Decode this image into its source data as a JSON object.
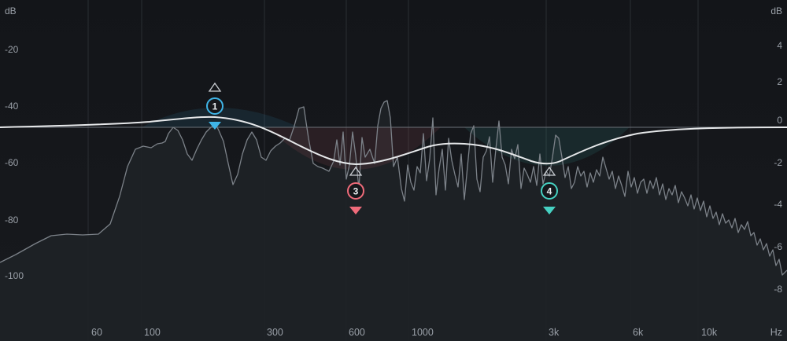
{
  "axes": {
    "left_unit": "dB",
    "right_unit": "dB",
    "left_ticks": [
      "-20",
      "-40",
      "-60",
      "-80",
      "-100"
    ],
    "right_ticks": [
      "4",
      "2",
      "0",
      "-2",
      "-4",
      "-6",
      "-8"
    ],
    "freq_ticks": [
      "60",
      "100",
      "300",
      "600",
      "1000",
      "3k",
      "6k",
      "10k"
    ],
    "freq_unit": "Hz"
  },
  "bands": [
    {
      "label": "1",
      "color": "#3fb4e6"
    },
    {
      "label": "3",
      "color": "#ef6b7a"
    },
    {
      "label": "4",
      "color": "#46d1c2"
    }
  ],
  "colors": {
    "background": "#15171b",
    "spectrum_fill": "#1f2327",
    "spectrum_line": "#7c8289",
    "eq_curve": "#e6e8ea",
    "grid": "#2e3238"
  }
}
